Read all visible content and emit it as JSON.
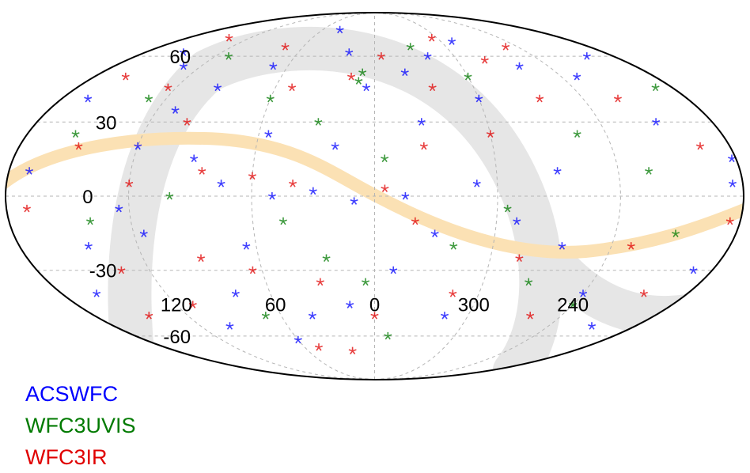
{
  "chart_data": {
    "type": "scatter",
    "projection": "mollweide",
    "title": "",
    "xlabel": "",
    "ylabel": "",
    "xlim": [
      180,
      -180
    ],
    "ylim": [
      -90,
      90
    ],
    "grid": true,
    "legend_position": "bottom-left",
    "lon_ticks": [
      {
        "value": 120,
        "label": "120"
      },
      {
        "value": 60,
        "label": "60"
      },
      {
        "value": 0,
        "label": "0"
      },
      {
        "value": 300,
        "label": "300"
      },
      {
        "value": 240,
        "label": "240"
      }
    ],
    "lat_ticks": [
      {
        "value": 60,
        "label": "60"
      },
      {
        "value": 30,
        "label": "30"
      },
      {
        "value": 0,
        "label": "0"
      },
      {
        "value": -30,
        "label": "-30"
      },
      {
        "value": -60,
        "label": "-60"
      }
    ],
    "series": [
      {
        "name": "ACSWFC",
        "color": "#0000ff",
        "points": [
          [
            150,
            62
          ],
          [
            132,
            55
          ],
          [
            165,
            40
          ],
          [
            170,
            10
          ],
          [
            145,
            -20
          ],
          [
            120,
            20
          ],
          [
            95,
            45
          ],
          [
            70,
            55
          ],
          [
            40,
            75
          ],
          [
            20,
            62
          ],
          [
            5,
            45
          ],
          [
            -20,
            52
          ],
          [
            -40,
            60
          ],
          [
            -70,
            68
          ],
          [
            -100,
            55
          ],
          [
            -130,
            50
          ],
          [
            -150,
            30
          ],
          [
            -175,
            5
          ],
          [
            -178,
            15
          ],
          [
            -170,
            -30
          ],
          [
            -150,
            -55
          ],
          [
            -120,
            -40
          ],
          [
            -95,
            -20
          ],
          [
            -70,
            -10
          ],
          [
            -50,
            5
          ],
          [
            -30,
            -15
          ],
          [
            -10,
            -30
          ],
          [
            15,
            -45
          ],
          [
            40,
            -50
          ],
          [
            60,
            -62
          ],
          [
            80,
            -40
          ],
          [
            100,
            -55
          ],
          [
            115,
            -15
          ],
          [
            75,
            5
          ],
          [
            50,
            0
          ],
          [
            30,
            2
          ],
          [
            10,
            -2
          ],
          [
            -15,
            0
          ],
          [
            55,
            25
          ],
          [
            90,
            15
          ],
          [
            125,
            -5
          ],
          [
            160,
            -40
          ],
          [
            -60,
            40
          ],
          [
            -90,
            10
          ],
          [
            -160,
            60
          ],
          [
            20,
            20
          ],
          [
            -25,
            30
          ],
          [
            65,
            -20
          ],
          [
            -45,
            -50
          ],
          [
            110,
            35
          ]
        ]
      },
      {
        "name": "WFC3UVIS",
        "color": "#007a00",
        "points": [
          [
            10,
            48
          ],
          [
            8,
            52
          ],
          [
            155,
            25
          ],
          [
            140,
            -10
          ],
          [
            110,
            60
          ],
          [
            60,
            40
          ],
          [
            30,
            30
          ],
          [
            -5,
            15
          ],
          [
            -30,
            65
          ],
          [
            -60,
            50
          ],
          [
            -105,
            25
          ],
          [
            -150,
            -15
          ],
          [
            -120,
            -45
          ],
          [
            -85,
            -35
          ],
          [
            -40,
            -20
          ],
          [
            -10,
            -60
          ],
          [
            25,
            -25
          ],
          [
            70,
            -50
          ],
          [
            100,
            0
          ],
          [
            130,
            40
          ],
          [
            -170,
            45
          ],
          [
            -135,
            10
          ],
          [
            45,
            -10
          ],
          [
            -65,
            -5
          ],
          [
            5,
            -35
          ]
        ]
      },
      {
        "name": "WFC3IR",
        "color": "#e00000",
        "points": [
          [
            160,
            50
          ],
          [
            140,
            70
          ],
          [
            170,
            -5
          ],
          [
            150,
            20
          ],
          [
            125,
            45
          ],
          [
            100,
            30
          ],
          [
            75,
            65
          ],
          [
            50,
            45
          ],
          [
            15,
            50
          ],
          [
            -5,
            60
          ],
          [
            -35,
            45
          ],
          [
            -55,
            70
          ],
          [
            -80,
            58
          ],
          [
            -110,
            65
          ],
          [
            -140,
            40
          ],
          [
            -165,
            20
          ],
          [
            -175,
            -10
          ],
          [
            -155,
            -40
          ],
          [
            -130,
            -20
          ],
          [
            -100,
            -50
          ],
          [
            -75,
            -25
          ],
          [
            -45,
            -40
          ],
          [
            -20,
            -10
          ],
          [
            0,
            -50
          ],
          [
            20,
            -68
          ],
          [
            48,
            -66
          ],
          [
            65,
            -30
          ],
          [
            90,
            -25
          ],
          [
            110,
            -45
          ],
          [
            135,
            -30
          ],
          [
            85,
            10
          ],
          [
            60,
            8
          ],
          [
            40,
            5
          ],
          [
            -5,
            3
          ],
          [
            120,
            5
          ],
          [
            -60,
            25
          ],
          [
            -95,
            40
          ],
          [
            30,
            -35
          ],
          [
            -25,
            20
          ],
          [
            145,
            -50
          ]
        ]
      }
    ]
  }
}
